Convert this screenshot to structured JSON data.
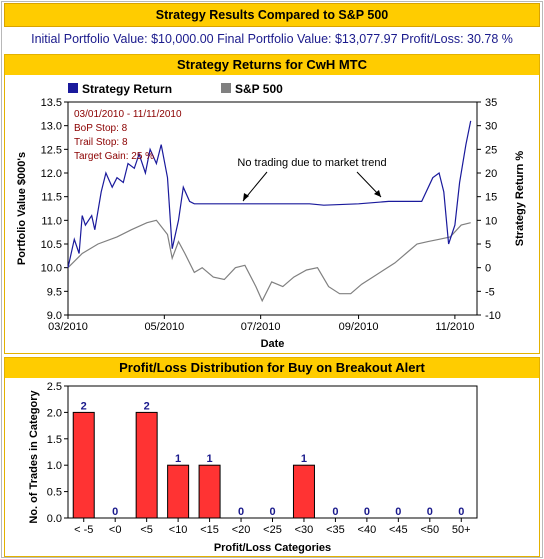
{
  "header": {
    "title": "Strategy Results Compared to S&P 500"
  },
  "summary": {
    "text": "Initial Portfolio Value: $10,000.00 Final Portfolio Value: $13,077.97 Profit/Loss: 30.78 %"
  },
  "colors": {
    "header": "#ffcc00",
    "strategy": "#1a1a9c",
    "sp500": "#808080",
    "bar": "#ff3333",
    "label": "#1a1a8c",
    "note": "#8b0000"
  },
  "chart_data": [
    {
      "type": "line",
      "title": "Strategy Returns for CwH MTC",
      "xlabel": "Date",
      "ylabel": "Portfolio Value $000's",
      "y2label": "Strategy Return %",
      "ylim": [
        9.0,
        13.5
      ],
      "y2lim": [
        -10,
        35
      ],
      "yticks": [
        "9.0",
        "9.5",
        "10.0",
        "10.5",
        "11.0",
        "11.5",
        "12.0",
        "12.5",
        "13.0",
        "13.5"
      ],
      "y2ticks": [
        "-10",
        "-5",
        "0",
        "5",
        "10",
        "15",
        "20",
        "25",
        "30",
        "35"
      ],
      "xticks": [
        "03/2010",
        "05/2010",
        "07/2010",
        "09/2010",
        "11/2010"
      ],
      "legend": [
        "Strategy Return",
        "S&P 500"
      ],
      "notes": [
        "03/01/2010 - 11/11/2010",
        "BoP Stop: 8",
        "Trail Stop: 8",
        "Target Gain: 25 %"
      ],
      "annotation": "No trading due to market trend",
      "series": [
        {
          "name": "Strategy Return",
          "x_unit": "date",
          "x": [
            "2010-03-01",
            "2010-03-05",
            "2010-03-08",
            "2010-03-10",
            "2010-03-12",
            "2010-03-16",
            "2010-03-18",
            "2010-03-22",
            "2010-03-25",
            "2010-03-29",
            "2010-04-01",
            "2010-04-05",
            "2010-04-08",
            "2010-04-12",
            "2010-04-15",
            "2010-04-19",
            "2010-04-22",
            "2010-04-26",
            "2010-04-29",
            "2010-05-03",
            "2010-05-06",
            "2010-05-10",
            "2010-05-13",
            "2010-05-17",
            "2010-05-20",
            "2010-05-27",
            "2010-06-15",
            "2010-07-15",
            "2010-08-01",
            "2010-08-10",
            "2010-09-01",
            "2010-09-20",
            "2010-10-05",
            "2010-10-11",
            "2010-10-18",
            "2010-10-22",
            "2010-10-25",
            "2010-10-28",
            "2010-11-01",
            "2010-11-04",
            "2010-11-08",
            "2010-11-11"
          ],
          "values": [
            10.0,
            10.6,
            10.3,
            11.1,
            10.9,
            11.1,
            10.8,
            11.6,
            12.0,
            11.7,
            11.9,
            11.8,
            12.2,
            12.1,
            12.4,
            12.0,
            12.5,
            12.2,
            12.6,
            11.9,
            10.4,
            11.0,
            11.7,
            11.4,
            11.35,
            11.35,
            11.35,
            11.35,
            11.35,
            11.32,
            11.35,
            11.4,
            11.4,
            11.4,
            11.9,
            12.0,
            11.6,
            10.5,
            10.9,
            11.8,
            12.6,
            13.1
          ]
        },
        {
          "name": "S&P 500",
          "x_unit": "date",
          "x": [
            "2010-03-01",
            "2010-03-10",
            "2010-03-20",
            "2010-04-01",
            "2010-04-10",
            "2010-04-20",
            "2010-04-26",
            "2010-05-03",
            "2010-05-06",
            "2010-05-10",
            "2010-05-14",
            "2010-05-20",
            "2010-05-25",
            "2010-06-01",
            "2010-06-08",
            "2010-06-15",
            "2010-06-21",
            "2010-06-28",
            "2010-07-02",
            "2010-07-08",
            "2010-07-15",
            "2010-07-22",
            "2010-07-30",
            "2010-08-06",
            "2010-08-13",
            "2010-08-20",
            "2010-08-27",
            "2010-09-03",
            "2010-09-10",
            "2010-09-17",
            "2010-09-24",
            "2010-10-01",
            "2010-10-08",
            "2010-10-15",
            "2010-10-22",
            "2010-10-29",
            "2010-11-05",
            "2010-11-11"
          ],
          "values": [
            10.0,
            10.3,
            10.5,
            10.65,
            10.8,
            10.95,
            11.0,
            10.7,
            10.2,
            10.55,
            10.3,
            9.9,
            10.0,
            9.8,
            9.75,
            10.0,
            10.05,
            9.6,
            9.3,
            9.7,
            9.6,
            9.8,
            9.95,
            10.0,
            9.6,
            9.45,
            9.45,
            9.65,
            9.8,
            9.95,
            10.1,
            10.3,
            10.5,
            10.55,
            10.6,
            10.65,
            10.9,
            10.95
          ]
        }
      ]
    },
    {
      "type": "bar",
      "title": "Profit/Loss Distribution for Buy on Breakout Alert",
      "xlabel": "Profit/Loss Categories",
      "ylabel": "No. of Trades in Category",
      "ylim": [
        0,
        2.5
      ],
      "yticks": [
        "0.0",
        "0.5",
        "1.0",
        "1.5",
        "2.0",
        "2.5"
      ],
      "categories": [
        "< -5",
        "<0",
        "<5",
        "<10",
        "<15",
        "<20",
        "<25",
        "<30",
        "<35",
        "<40",
        "<45",
        "<50",
        "50+"
      ],
      "values": [
        2,
        0,
        2,
        1,
        1,
        0,
        0,
        1,
        0,
        0,
        0,
        0,
        0
      ],
      "labels": [
        "2",
        "0",
        "2",
        "1",
        "1",
        "0",
        "0",
        "1",
        "0",
        "0",
        "0",
        "0",
        "0"
      ]
    }
  ]
}
